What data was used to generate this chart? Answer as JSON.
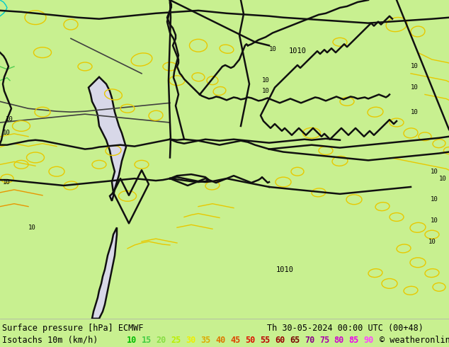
{
  "figsize": [
    6.34,
    4.9
  ],
  "dpi": 100,
  "map_bg": "#c8f090",
  "sea_color": "#d8d8e8",
  "border_black": "#101010",
  "border_dark": "#404040",
  "border_med": "#606060",
  "yellow_contour": "#e8c800",
  "orange_contour": "#e89600",
  "green_contour": "#50cc50",
  "cyan_contour": "#00cccc",
  "bottom_bg": "#c8f090",
  "title_line1": "Surface pressure [hPa] ECMWF",
  "datetime_str": "Th 30-05-2024 00:00 UTC (00+48)",
  "legend_label": "Isotachs 10m (km/h)",
  "copyright": "© weatheronline.co.uk",
  "legend_values": [
    "10",
    "15",
    "20",
    "25",
    "30",
    "35",
    "40",
    "45",
    "50",
    "55",
    "60",
    "65",
    "70",
    "75",
    "80",
    "85",
    "90"
  ],
  "legend_colors": [
    "#00bb00",
    "#44cc44",
    "#88dd44",
    "#bbee00",
    "#eeee00",
    "#ddaa00",
    "#dd7700",
    "#dd4400",
    "#dd1100",
    "#bb0000",
    "#990000",
    "#770000",
    "#880088",
    "#aa00aa",
    "#cc00cc",
    "#ee00ee",
    "#ff44ff"
  ],
  "text_color": "#000000",
  "font_size_title": 8.5,
  "font_size_legend": 8.5,
  "font_size_map": 7.5
}
